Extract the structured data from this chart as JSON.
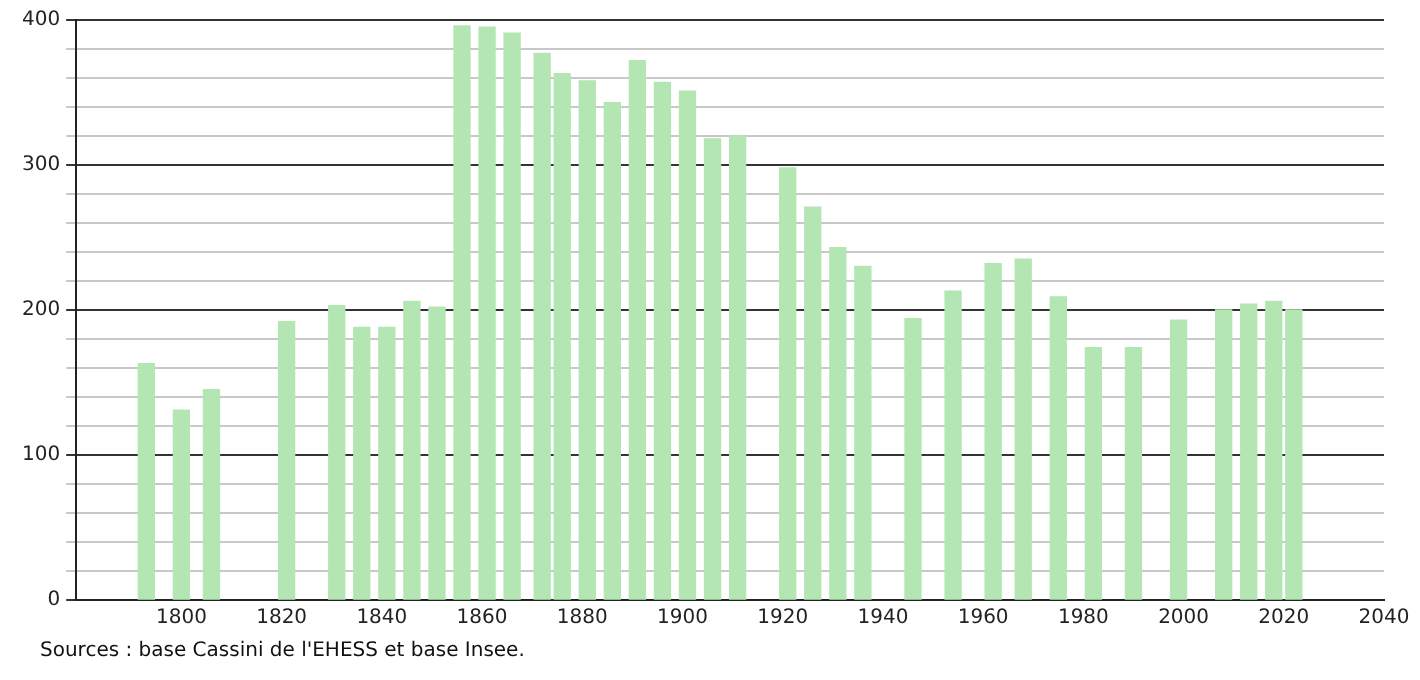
{
  "chart_data": {
    "type": "bar",
    "color": "#b3e6b3",
    "x": [
      1793,
      1800,
      1806,
      1821,
      1831,
      1836,
      1841,
      1846,
      1851,
      1856,
      1861,
      1866,
      1872,
      1876,
      1881,
      1886,
      1891,
      1896,
      1901,
      1906,
      1911,
      1921,
      1926,
      1931,
      1936,
      1946,
      1954,
      1962,
      1968,
      1975,
      1982,
      1990,
      1999,
      2008,
      2013,
      2018,
      2022
    ],
    "values": [
      163,
      131,
      145,
      192,
      203,
      188,
      188,
      206,
      202,
      396,
      395,
      391,
      377,
      363,
      358,
      343,
      372,
      357,
      351,
      318,
      320,
      298,
      271,
      243,
      230,
      194,
      213,
      232,
      235,
      209,
      174,
      174,
      193,
      200,
      204,
      206,
      200
    ],
    "xlim": [
      1779,
      2040
    ],
    "xticks": [
      1800,
      1820,
      1840,
      1860,
      1880,
      1900,
      1920,
      1940,
      1960,
      1980,
      2000,
      2020,
      2040
    ],
    "ylim": [
      0,
      400
    ],
    "yticks": [
      0,
      {
        "value": 20,
        "label": null
      },
      {
        "value": 40,
        "label": null
      },
      {
        "value": 60,
        "label": null
      },
      {
        "value": 80,
        "label": null
      },
      100,
      {
        "value": 120,
        "label": null
      },
      {
        "value": 140,
        "label": null
      },
      {
        "value": 160,
        "label": null
      },
      {
        "value": 180,
        "label": null
      },
      200,
      {
        "value": 220,
        "label": null
      },
      {
        "value": 240,
        "label": null
      },
      {
        "value": 260,
        "label": null
      },
      {
        "value": 280,
        "label": null
      },
      300,
      {
        "value": 320,
        "label": null
      },
      {
        "value": 340,
        "label": null
      },
      {
        "value": 360,
        "label": null
      },
      {
        "value": 380,
        "label": null
      },
      400
    ],
    "grid": "y",
    "legend": false,
    "annotations": [
      "Sources : base Cassini de l'EHESS et base Insee."
    ]
  }
}
